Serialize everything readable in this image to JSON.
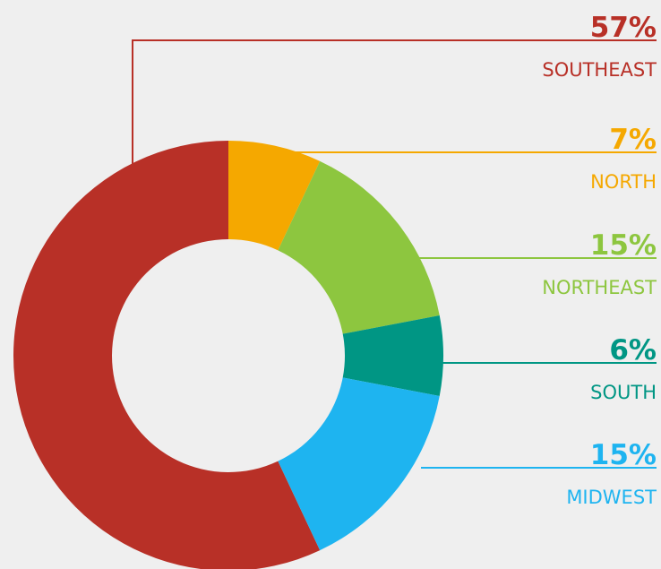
{
  "chart_data": {
    "type": "donut",
    "categories": [
      "SOUTHEAST",
      "NORTH",
      "NORTHEAST",
      "SOUTH",
      "MIDWEST"
    ],
    "values": [
      57,
      7,
      15,
      6,
      15
    ],
    "value_labels": [
      "57%",
      "7%",
      "15%",
      "6%",
      "15%"
    ],
    "colors": [
      "#b83027",
      "#f5a800",
      "#8dc63f",
      "#009684",
      "#1eb4f0"
    ]
  }
}
